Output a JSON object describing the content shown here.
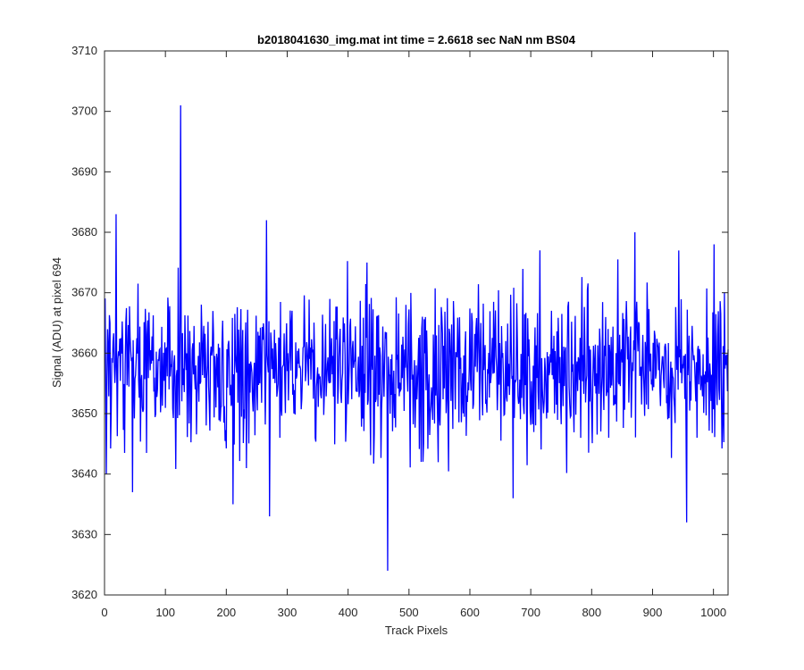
{
  "chart_data": {
    "type": "line",
    "title": "b2018041630_img.mat int time = 2.6618 sec  NaN nm BS04",
    "xlabel": "Track Pixels",
    "ylabel": "Signal (ADU) at pixel 694",
    "xlim": [
      0,
      1024
    ],
    "ylim": [
      3620,
      3710
    ],
    "xticks": [
      0,
      100,
      200,
      300,
      400,
      500,
      600,
      700,
      800,
      900,
      1000
    ],
    "yticks": [
      3620,
      3630,
      3640,
      3650,
      3660,
      3670,
      3680,
      3690,
      3700,
      3710
    ],
    "grid": false,
    "line_color": "#0000ff",
    "noise": {
      "n_points": 1024,
      "mean": 3657.5,
      "std": 6.5
    },
    "notable_points": [
      {
        "x": 2,
        "y": 3640
      },
      {
        "x": 18,
        "y": 3683
      },
      {
        "x": 45,
        "y": 3637
      },
      {
        "x": 124,
        "y": 3701
      },
      {
        "x": 210,
        "y": 3635
      },
      {
        "x": 265,
        "y": 3682
      },
      {
        "x": 270,
        "y": 3633
      },
      {
        "x": 430,
        "y": 3675
      },
      {
        "x": 464,
        "y": 3624
      },
      {
        "x": 670,
        "y": 3636
      },
      {
        "x": 870,
        "y": 3680
      },
      {
        "x": 955,
        "y": 3632
      },
      {
        "x": 1000,
        "y": 3678
      }
    ]
  }
}
